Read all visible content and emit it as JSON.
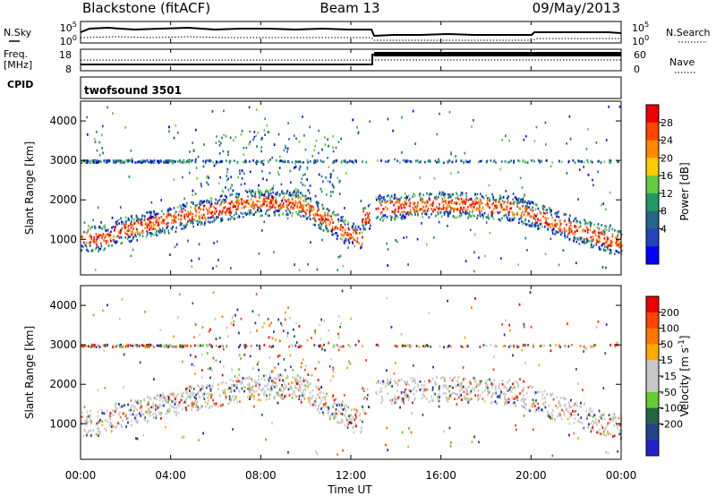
{
  "header": {
    "station": "Blackstone (fitACF)",
    "beam": "Beam 13",
    "date": "09/May/2013"
  },
  "noise_panel": {
    "left_label": "N.Sky",
    "right_label": "N.Search",
    "left_ticks": [
      "10^5",
      "10^0"
    ],
    "right_ticks": [
      "10^5",
      "10^0"
    ]
  },
  "freq_panel": {
    "left_label_1": "Freq.",
    "left_label_2": "[MHz]",
    "right_label": "Nave",
    "left_ticks": [
      "18",
      "8"
    ],
    "right_ticks": [
      "60",
      "0"
    ]
  },
  "cpid_panel": {
    "label": "CPID",
    "program": "twofsound 3501"
  },
  "chart_data": [
    {
      "type": "heatmap",
      "name": "power",
      "ylabel": "Slant Range [km]",
      "ylim": [
        100,
        4500
      ],
      "yticks": [
        1000,
        2000,
        3000,
        4000
      ],
      "colorbar_label": "Power [dB]",
      "colorbar_ticks": [
        "28",
        "24",
        "20",
        "16",
        "12",
        "8",
        "4"
      ],
      "colors": [
        "#0000ff",
        "#2244bb",
        "#226688",
        "#229966",
        "#66cc44",
        "#ffcc00",
        "#ff8800",
        "#ff4400",
        "#ee0000"
      ]
    },
    {
      "type": "heatmap",
      "name": "velocity",
      "ylabel": "Slant Range [km]",
      "ylim": [
        100,
        4500
      ],
      "yticks": [
        1000,
        2000,
        3000,
        4000
      ],
      "colorbar_label": "Velocity [m s^-1]",
      "colorbar_ticks": [
        "200",
        "100",
        "50",
        "15",
        "-15",
        "-50",
        "-100",
        "-200"
      ],
      "colors": [
        "#2222cc",
        "#224488",
        "#226644",
        "#66cc33",
        "#c8c8c8",
        "#c8c8c8",
        "#ffaa00",
        "#ff7700",
        "#ff4400",
        "#ee0000"
      ]
    }
  ],
  "time_axis": {
    "label": "Time UT",
    "ticks": [
      "00:00",
      "04:00",
      "08:00",
      "12:00",
      "16:00",
      "20:00",
      "00:00"
    ]
  }
}
